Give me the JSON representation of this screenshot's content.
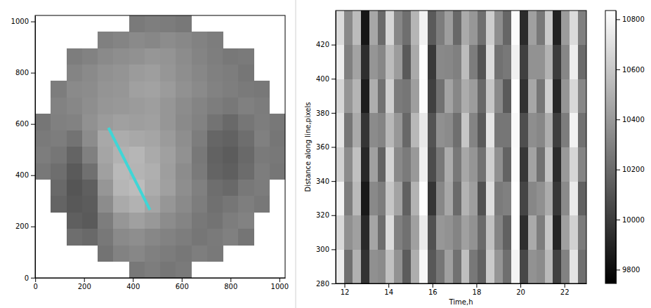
{
  "chart_data": [
    {
      "type": "image",
      "xlim": [
        -0.5,
        1023.5
      ],
      "ylim": [
        -0.5,
        1023.5
      ],
      "xticks": [
        0,
        200,
        400,
        600,
        800,
        1000
      ],
      "yticks": [
        0,
        200,
        400,
        600,
        800,
        1000
      ],
      "x_edges": [
        0,
        64,
        128,
        192,
        256,
        320,
        384,
        448,
        512,
        576,
        640,
        704,
        768,
        832,
        896,
        960,
        1024
      ],
      "y_edges": [
        0,
        64,
        128,
        192,
        256,
        320,
        384,
        448,
        512,
        576,
        640,
        704,
        768,
        832,
        896,
        960,
        1024
      ],
      "zlim": [
        0,
        255
      ],
      "z": [
        [
          null,
          null,
          null,
          null,
          null,
          null,
          120,
          125,
          118,
          122,
          null,
          null,
          null,
          null,
          null,
          null
        ],
        [
          null,
          null,
          null,
          null,
          115,
          130,
          135,
          128,
          124,
          119,
          126,
          121,
          null,
          null,
          null,
          null
        ],
        [
          null,
          null,
          110,
          105,
          120,
          138,
          142,
          135,
          130,
          125,
          118,
          122,
          128,
          117,
          null,
          null
        ],
        [
          null,
          null,
          95,
          90,
          125,
          150,
          160,
          152,
          140,
          132,
          120,
          115,
          125,
          130,
          null,
          null
        ],
        [
          null,
          100,
          88,
          92,
          140,
          170,
          178,
          165,
          150,
          138,
          125,
          112,
          118,
          126,
          120,
          null
        ],
        [
          null,
          105,
          85,
          95,
          150,
          182,
          188,
          172,
          160,
          142,
          128,
          110,
          105,
          120,
          124,
          null
        ],
        [
          120,
          110,
          90,
          112,
          160,
          185,
          180,
          175,
          158,
          140,
          122,
          100,
          95,
          108,
          125,
          118
        ],
        [
          125,
          118,
          100,
          128,
          165,
          178,
          182,
          170,
          160,
          145,
          120,
          98,
          92,
          105,
          122,
          120
        ],
        [
          122,
          125,
          115,
          140,
          168,
          172,
          168,
          165,
          155,
          142,
          125,
          102,
          98,
          110,
          128,
          118
        ],
        [
          118,
          128,
          130,
          145,
          155,
          160,
          158,
          160,
          150,
          138,
          130,
          115,
          105,
          118,
          125,
          120
        ],
        [
          null,
          130,
          135,
          142,
          150,
          152,
          155,
          158,
          150,
          140,
          132,
          125,
          120,
          128,
          124,
          null
        ],
        [
          null,
          125,
          138,
          140,
          148,
          150,
          160,
          162,
          155,
          145,
          138,
          130,
          126,
          122,
          120,
          null
        ],
        [
          null,
          null,
          132,
          138,
          145,
          148,
          155,
          158,
          150,
          142,
          135,
          128,
          125,
          118,
          null,
          null
        ],
        [
          null,
          null,
          125,
          130,
          138,
          142,
          145,
          150,
          148,
          140,
          132,
          126,
          120,
          122,
          null,
          null
        ],
        [
          null,
          null,
          null,
          null,
          128,
          132,
          138,
          135,
          140,
          136,
          130,
          125,
          null,
          null,
          null,
          null
        ],
        [
          null,
          null,
          null,
          null,
          null,
          null,
          122,
          126,
          124,
          120,
          null,
          null,
          null,
          null,
          null,
          null
        ]
      ],
      "line": {
        "x": [
          300,
          470
        ],
        "y": [
          585,
          265
        ],
        "color": "#3fd6d6"
      }
    },
    {
      "type": "heatmap",
      "xlabel": "Time,h",
      "ylabel": "Distance along line,pixels",
      "xlim": [
        11.6,
        23.0
      ],
      "ylim": [
        280,
        440
      ],
      "xticks": [
        12,
        14,
        16,
        18,
        20,
        22
      ],
      "yticks": [
        280,
        300,
        320,
        340,
        360,
        380,
        400,
        420
      ],
      "x_edges": [
        11.6,
        11.98,
        12.36,
        12.74,
        13.12,
        13.5,
        13.88,
        14.26,
        14.64,
        15.02,
        15.4,
        15.78,
        16.16,
        16.54,
        16.92,
        17.3,
        17.68,
        18.06,
        18.44,
        18.82,
        19.2,
        19.58,
        19.96,
        20.34,
        20.72,
        21.1,
        21.48,
        21.86,
        22.24,
        22.62,
        23.0
      ],
      "y_edges": [
        280,
        300,
        320,
        340,
        360,
        380,
        400,
        420,
        440
      ],
      "z": [
        [
          10750,
          10220,
          10500,
          9960,
          10360,
          10340,
          10570,
          10370,
          10140,
          10490,
          10800,
          10120,
          10250,
          10430,
          10230,
          10560,
          10260,
          10160,
          10610,
          10380,
          10220,
          10790,
          10050,
          10370,
          10340,
          10540,
          10020,
          10300,
          10720,
          10220
        ],
        [
          10670,
          10360,
          10430,
          9920,
          10450,
          10210,
          10680,
          10290,
          10230,
          10430,
          10750,
          10090,
          10390,
          10370,
          10310,
          10430,
          10370,
          10200,
          10570,
          10310,
          10160,
          10830,
          9940,
          10470,
          10280,
          10590,
          9900,
          10430,
          10640,
          10270
        ],
        [
          10780,
          10280,
          10540,
          9850,
          10330,
          10280,
          10590,
          10440,
          10160,
          10510,
          10830,
          9970,
          10320,
          10460,
          10200,
          10510,
          10420,
          10090,
          10690,
          10270,
          10290,
          10830,
          10040,
          10320,
          10360,
          10480,
          9980,
          10340,
          10750,
          10160
        ],
        [
          10640,
          10340,
          10570,
          9910,
          10430,
          10170,
          10650,
          10330,
          10270,
          10400,
          10770,
          10070,
          10260,
          10480,
          10260,
          10460,
          10380,
          10230,
          10630,
          10360,
          10170,
          10820,
          9980,
          10440,
          10230,
          10580,
          9930,
          10400,
          10660,
          10310
        ],
        [
          10720,
          10250,
          10470,
          9970,
          10340,
          10310,
          10530,
          10390,
          10190,
          10530,
          10740,
          10100,
          10360,
          10340,
          10220,
          10590,
          10310,
          10130,
          10720,
          10250,
          10250,
          10810,
          10080,
          10350,
          10320,
          10490,
          10010,
          10280,
          10780,
          10230
        ],
        [
          10660,
          10380,
          10520,
          9870,
          10490,
          10230,
          10630,
          10270,
          10250,
          10420,
          10820,
          10020,
          10230,
          10440,
          10320,
          10480,
          10410,
          10190,
          10590,
          10330,
          10130,
          10830,
          9960,
          10460,
          10250,
          10630,
          9910,
          10380,
          10670,
          10320
        ],
        [
          10760,
          10290,
          10440,
          9940,
          10380,
          10320,
          10550,
          10410,
          10130,
          10470,
          10830,
          9990,
          10330,
          10320,
          10290,
          10550,
          10280,
          10100,
          10680,
          10230,
          10260,
          10770,
          10020,
          10370,
          10370,
          10510,
          10000,
          10320,
          10760,
          10200
        ],
        [
          10680,
          10330,
          10550,
          9840,
          10460,
          10200,
          10660,
          10320,
          10220,
          10520,
          10780,
          10130,
          10280,
          10420,
          10190,
          10470,
          10390,
          10220,
          10620,
          10350,
          10180,
          10820,
          9930,
          10430,
          10260,
          10610,
          9890,
          10410,
          10680,
          10290
        ]
      ],
      "colorbar": {
        "range": [
          9745,
          10835
        ],
        "ticks": [
          9800,
          10000,
          10200,
          10400,
          10600,
          10800
        ]
      }
    }
  ]
}
